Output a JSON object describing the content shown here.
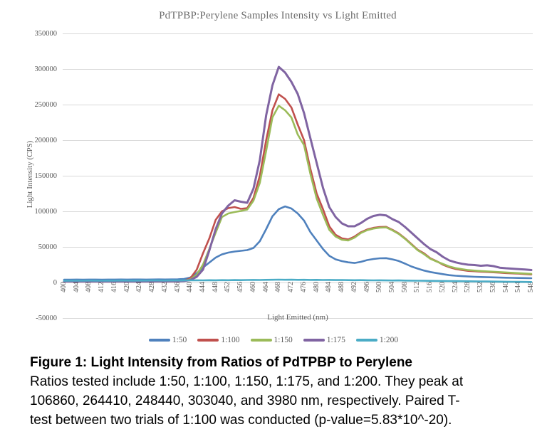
{
  "page": {
    "background": "#FFFFFF"
  },
  "figure_caption": {
    "title": "Figure 1: Light Intensity from Ratios of PdTPBP to Perylene",
    "lines": [
      "Ratios tested include 1:50, 1:100, 1:150, 1:175, and 1:200. They peak at",
      "106860, 264410, 248440, 303040, and 3980 nm, respectively. Paired T-",
      "test between two trials of 1:100 was conducted (p-value=5.83*10^-20)."
    ]
  },
  "chart_data": {
    "type": "line",
    "title": "PdTPBP:Perylene Samples Intensity vs Light Emitted",
    "xlabel": "Light Emitted (nm)",
    "ylabel": "Light Intensity (CPS)",
    "ylim": [
      -50000,
      350000
    ],
    "yticks": [
      350000,
      300000,
      250000,
      200000,
      150000,
      100000,
      50000,
      0,
      -50000
    ],
    "xticks": [
      400,
      404,
      408,
      412,
      416,
      420,
      424,
      428,
      432,
      436,
      440,
      444,
      448,
      452,
      456,
      460,
      464,
      468,
      472,
      476,
      480,
      484,
      488,
      492,
      496,
      500,
      504,
      508,
      512,
      516,
      520,
      524,
      528,
      532,
      536,
      540,
      544,
      548
    ],
    "grid": "horizontal",
    "legend_position": "bottom",
    "grid_color": "#D9D9D9",
    "text_color": "#595959",
    "x": [
      400,
      402,
      404,
      406,
      408,
      410,
      412,
      414,
      416,
      418,
      420,
      422,
      424,
      426,
      428,
      430,
      432,
      434,
      436,
      438,
      440,
      442,
      444,
      446,
      448,
      450,
      452,
      454,
      456,
      458,
      460,
      462,
      464,
      466,
      468,
      470,
      472,
      474,
      476,
      478,
      480,
      482,
      484,
      486,
      488,
      490,
      492,
      494,
      496,
      498,
      500,
      502,
      504,
      506,
      508,
      510,
      512,
      514,
      516,
      518,
      520,
      522,
      524,
      526,
      528,
      530,
      532,
      534,
      536,
      538,
      540,
      542,
      544,
      546,
      548
    ],
    "series": [
      {
        "name": "1:50",
        "color": "#4F81BD",
        "peak": 106860,
        "width": 2.6,
        "values": [
          4000,
          4000,
          4100,
          4000,
          4100,
          4100,
          4000,
          4100,
          4100,
          4200,
          4100,
          4200,
          4200,
          4100,
          4200,
          4300,
          4200,
          4300,
          4400,
          5000,
          7000,
          13000,
          21000,
          28000,
          35000,
          39500,
          42000,
          43500,
          44500,
          45500,
          48500,
          58000,
          75000,
          93000,
          103000,
          106860,
          104000,
          97000,
          87000,
          71000,
          59000,
          47000,
          37500,
          32500,
          30000,
          28300,
          27400,
          29000,
          31500,
          33000,
          34000,
          34200,
          32500,
          30200,
          26500,
          22500,
          19500,
          16800,
          14700,
          13200,
          11700,
          10300,
          9500,
          8900,
          8400,
          8000,
          7700,
          7400,
          7200,
          6900,
          6700,
          6500,
          6300,
          6200,
          6000
        ]
      },
      {
        "name": "1:100",
        "color": "#C0504D",
        "peak": 264410,
        "width": 2.6,
        "values": [
          1300,
          1300,
          1400,
          1300,
          1400,
          1300,
          1400,
          1300,
          1400,
          1400,
          1300,
          1400,
          1400,
          1400,
          1500,
          1400,
          1500,
          1500,
          1600,
          2200,
          6000,
          18000,
          41000,
          62000,
          88000,
          100000,
          104500,
          106000,
          103500,
          104500,
          119000,
          150000,
          200000,
          242000,
          264410,
          258000,
          246000,
          222000,
          200000,
          160000,
          125000,
          103000,
          79000,
          67000,
          62000,
          60500,
          64500,
          70500,
          74500,
          76800,
          78000,
          78200,
          74000,
          69000,
          62000,
          54000,
          46000,
          41000,
          34000,
          30000,
          25000,
          21500,
          19000,
          17500,
          16300,
          15800,
          15200,
          14800,
          14300,
          13800,
          13200,
          12800,
          12400,
          11800,
          11200
        ]
      },
      {
        "name": "1:150",
        "color": "#9BBB59",
        "peak": 248440,
        "width": 2.6,
        "values": [
          1600,
          1600,
          1700,
          1600,
          1700,
          1600,
          1700,
          1700,
          1600,
          1700,
          1700,
          1800,
          1700,
          1800,
          1800,
          1700,
          1800,
          1900,
          1800,
          2100,
          4500,
          11000,
          25000,
          47000,
          70000,
          92000,
          97000,
          99000,
          100500,
          102500,
          115000,
          140000,
          185000,
          232000,
          248440,
          242000,
          232000,
          208000,
          193000,
          153000,
          118000,
          95000,
          74000,
          64500,
          60000,
          59000,
          63000,
          69500,
          73500,
          75800,
          77000,
          77400,
          73300,
          68300,
          61300,
          53300,
          45300,
          39800,
          33300,
          29500,
          26000,
          22500,
          20200,
          18700,
          17400,
          16700,
          16100,
          15600,
          15100,
          14600,
          14100,
          13600,
          13100,
          12600,
          12100
        ]
      },
      {
        "name": "1:175",
        "color": "#8064A2",
        "peak": 303040,
        "width": 3,
        "values": [
          1500,
          1500,
          1600,
          1500,
          1500,
          1600,
          1500,
          1600,
          1500,
          1600,
          1500,
          1600,
          1500,
          1500,
          1600,
          1700,
          1600,
          1700,
          1800,
          2000,
          3500,
          8000,
          18000,
          45000,
          75000,
          97000,
          108000,
          115500,
          113500,
          112000,
          132000,
          172000,
          235000,
          277000,
          303040,
          295000,
          282000,
          265000,
          238000,
          203000,
          168000,
          133000,
          106000,
          92000,
          83000,
          79000,
          79000,
          83500,
          89500,
          93500,
          95200,
          94300,
          89000,
          85000,
          78000,
          70000,
          62000,
          54000,
          47000,
          42500,
          36000,
          31000,
          28300,
          26300,
          25000,
          24500,
          23500,
          24100,
          23000,
          20800,
          20000,
          19400,
          18800,
          18200,
          17500
        ]
      },
      {
        "name": "1:200",
        "color": "#4BACC6",
        "peak": 3980,
        "width": 2.6,
        "values": [
          2400,
          2500,
          2600,
          2500,
          2700,
          2600,
          2500,
          2700,
          2600,
          2800,
          2700,
          2600,
          2800,
          2700,
          2900,
          2800,
          2700,
          2900,
          2800,
          2900,
          3000,
          3100,
          3000,
          3200,
          3100,
          3300,
          3200,
          3400,
          3300,
          3500,
          3600,
          3500,
          3700,
          3800,
          3980,
          3800,
          3900,
          3700,
          3800,
          3600,
          3700,
          3500,
          3600,
          3400,
          3500,
          3300,
          3200,
          3300,
          3100,
          3000,
          3100,
          2900,
          2800,
          2900,
          2700,
          2600,
          2500,
          2400,
          2300,
          2200,
          2100,
          2000,
          1900,
          1800,
          1700,
          1600,
          1500,
          1400,
          1300,
          1200,
          1100,
          1000,
          900,
          800,
          700
        ]
      }
    ]
  }
}
